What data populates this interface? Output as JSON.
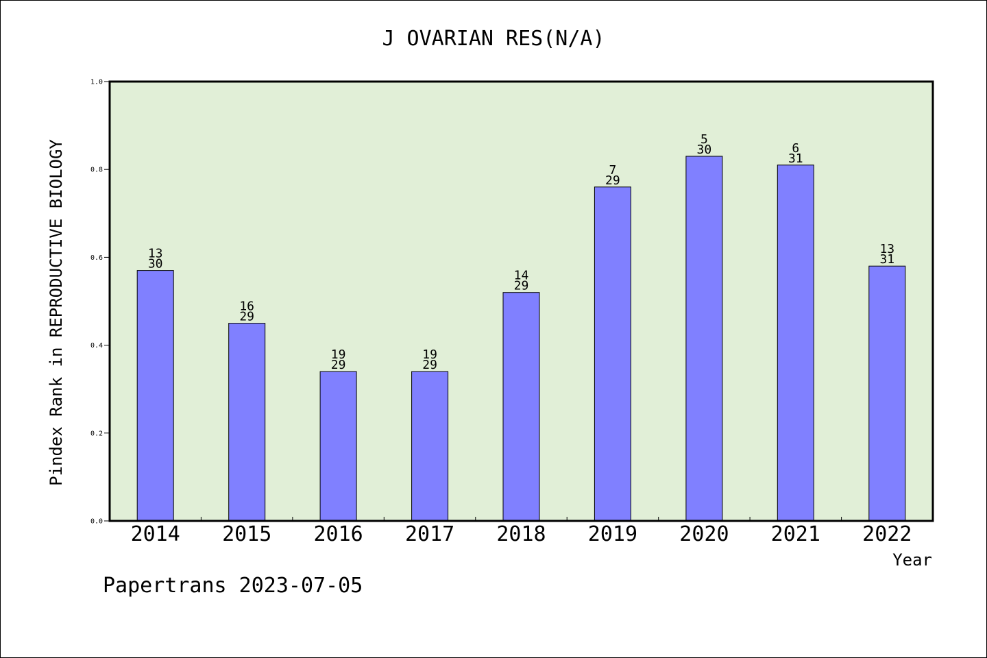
{
  "chart_data": {
    "type": "bar",
    "title": "J OVARIAN RES(N/A)",
    "xlabel": "Year",
    "ylabel": "Pindex Rank in REPRODUCTIVE BIOLOGY",
    "ylim": [
      0,
      1.0
    ],
    "yticks": [
      "0.0",
      "0.2",
      "0.4",
      "0.6",
      "0.8",
      "1.0"
    ],
    "categories": [
      "2014",
      "2015",
      "2016",
      "2017",
      "2018",
      "2019",
      "2020",
      "2021",
      "2022"
    ],
    "values": [
      0.57,
      0.45,
      0.34,
      0.34,
      0.52,
      0.76,
      0.83,
      0.81,
      0.58
    ],
    "rank": [
      "13",
      "16",
      "19",
      "19",
      "14",
      "7",
      "5",
      "6",
      "13"
    ],
    "total": [
      "30",
      "29",
      "29",
      "29",
      "29",
      "29",
      "30",
      "31",
      "31"
    ],
    "grid": false,
    "colors": {
      "bar": "#8080ff",
      "plot_bg": "#e1efd7",
      "axis": "#000000"
    }
  },
  "footer": "Papertrans 2023-07-05"
}
